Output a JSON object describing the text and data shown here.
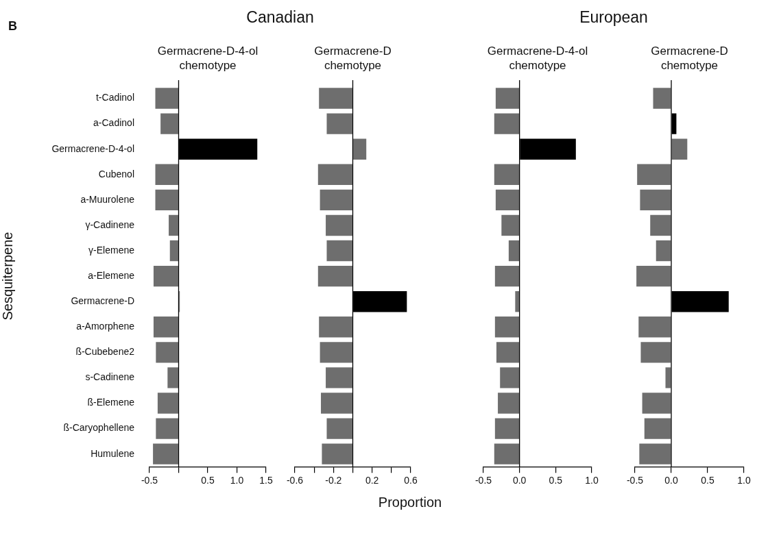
{
  "chart_data": [
    {
      "type": "bar",
      "orientation": "horizontal",
      "title": "Canadian",
      "subtitle": "Germacrene-D-4-ol chemotype",
      "ylabel": "Sesquiterpene",
      "annotations": [
        "B"
      ],
      "categories": [
        "t-Cadinol",
        "a-Cadinol",
        "Germacrene-D-4-ol",
        "Cubenol",
        "a-Muurolene",
        "γ-Cadinene",
        "γ-Elemene",
        "a-Elemene",
        "Germacrene-D",
        "a-Amorphene",
        "ß-Cubebene2",
        "s-Cadinene",
        "ß-Elemene",
        "ß-Caryophellene",
        "Humulene"
      ],
      "values": [
        -0.4,
        -0.31,
        1.35,
        -0.4,
        -0.4,
        -0.17,
        -0.15,
        -0.43,
        0.02,
        -0.43,
        -0.39,
        -0.19,
        -0.36,
        -0.39,
        -0.44
      ],
      "colors": [
        "#6e6e6e",
        "#6e6e6e",
        "#000000",
        "#6e6e6e",
        "#6e6e6e",
        "#6e6e6e",
        "#6e6e6e",
        "#6e6e6e",
        "#6e6e6e",
        "#6e6e6e",
        "#6e6e6e",
        "#6e6e6e",
        "#6e6e6e",
        "#6e6e6e",
        "#6e6e6e"
      ],
      "xlim": [
        -0.5,
        1.5
      ],
      "xticks": [
        -0.5,
        {
          "value": 0,
          "label": null
        },
        0.5,
        {
          "value": 1,
          "label": "1.0"
        },
        1.5
      ]
    },
    {
      "type": "bar",
      "orientation": "horizontal",
      "subtitle": "Germacrene-D chemotype",
      "xlabel": "Proportion",
      "tick_labels": "x",
      "values": [
        -0.35,
        -0.27,
        0.14,
        -0.36,
        -0.34,
        -0.28,
        -0.27,
        -0.36,
        0.56,
        -0.35,
        -0.34,
        -0.28,
        -0.33,
        -0.27,
        -0.32
      ],
      "colors": [
        "#6e6e6e",
        "#6e6e6e",
        "#6e6e6e",
        "#6e6e6e",
        "#6e6e6e",
        "#6e6e6e",
        "#6e6e6e",
        "#6e6e6e",
        "#000000",
        "#6e6e6e",
        "#6e6e6e",
        "#6e6e6e",
        "#6e6e6e",
        "#6e6e6e",
        "#6e6e6e"
      ],
      "xlim": [
        -0.6,
        0.6
      ],
      "xticks": [
        -0.6,
        {
          "value": -0.4,
          "label": null
        },
        -0.2,
        {
          "value": 0,
          "label": null
        },
        0.2,
        {
          "value": 0.4,
          "label": null
        },
        0.6
      ]
    },
    {
      "type": "bar",
      "orientation": "horizontal",
      "title": "European",
      "subtitle": "Germacrene-D-4-ol chemotype",
      "tick_labels": "x",
      "values": [
        -0.33,
        -0.35,
        0.78,
        -0.35,
        -0.33,
        -0.25,
        -0.15,
        -0.34,
        -0.06,
        -0.34,
        -0.32,
        -0.27,
        -0.3,
        -0.34,
        -0.35
      ],
      "colors": [
        "#6e6e6e",
        "#6e6e6e",
        "#000000",
        "#6e6e6e",
        "#6e6e6e",
        "#6e6e6e",
        "#6e6e6e",
        "#6e6e6e",
        "#6e6e6e",
        "#6e6e6e",
        "#6e6e6e",
        "#6e6e6e",
        "#6e6e6e",
        "#6e6e6e",
        "#6e6e6e"
      ],
      "xlim": [
        -0.5,
        1.0
      ],
      "xticks": [
        -0.5,
        {
          "value": 0,
          "label": "0.0"
        },
        0.5,
        {
          "value": 1,
          "label": "1.0"
        }
      ]
    },
    {
      "type": "bar",
      "orientation": "horizontal",
      "subtitle": "Germacrene-D chemotype",
      "tick_labels": "x",
      "values": [
        -0.25,
        0.07,
        0.22,
        -0.47,
        -0.43,
        -0.29,
        -0.21,
        -0.48,
        0.79,
        -0.45,
        -0.42,
        -0.08,
        -0.4,
        -0.37,
        -0.44
      ],
      "colors": [
        "#6e6e6e",
        "#000000",
        "#6e6e6e",
        "#6e6e6e",
        "#6e6e6e",
        "#6e6e6e",
        "#6e6e6e",
        "#6e6e6e",
        "#000000",
        "#6e6e6e",
        "#6e6e6e",
        "#6e6e6e",
        "#6e6e6e",
        "#6e6e6e",
        "#6e6e6e"
      ],
      "xlim": [
        -0.5,
        1.0
      ],
      "xticks": [
        -0.5,
        {
          "value": 0,
          "label": "0.0"
        },
        0.5,
        {
          "value": 1,
          "label": "1.0"
        }
      ]
    }
  ]
}
